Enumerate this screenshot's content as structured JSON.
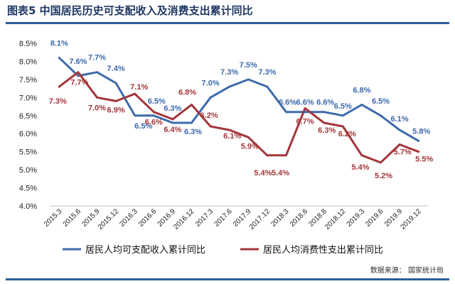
{
  "chart_data": {
    "type": "line",
    "title": "图表5  中国居民历史可支配收入及消费支出累计同比",
    "x": [
      "2015.3",
      "2015.6",
      "2015.9",
      "2015.12",
      "2016.3",
      "2016.6",
      "2016.9",
      "2016.12",
      "2017.3",
      "2017.6",
      "2017.9",
      "2017.12",
      "2018.3",
      "2018.6",
      "2018.8",
      "2018.12",
      "2019.3",
      "2019.6",
      "2019.9",
      "2019.12"
    ],
    "series": [
      {
        "name": "居民人均可支配收入累计同比",
        "color": "#3e6aab",
        "values": [
          8.1,
          7.6,
          7.7,
          7.4,
          6.5,
          6.5,
          6.3,
          6.3,
          7.0,
          7.3,
          7.5,
          7.3,
          6.6,
          6.6,
          6.6,
          6.5,
          6.8,
          6.5,
          6.1,
          5.8
        ],
        "labels": [
          "8.1%",
          "7.6%",
          "7.7%",
          "7.4%",
          "6.5%",
          "6.5%",
          "6.3%",
          "6.3%",
          "7.0%",
          "7.3%",
          "7.5%",
          "7.3%",
          "6.6%",
          "6.6%",
          "6.6%",
          "6.5%",
          "6.8%",
          "6.5%",
          "6.1%",
          "5.8%"
        ]
      },
      {
        "name": "居民人均消费性支出累计同比",
        "color": "#a3363a",
        "values": [
          7.3,
          7.7,
          7.0,
          6.9,
          7.1,
          6.6,
          6.4,
          6.8,
          6.2,
          6.1,
          5.9,
          5.4,
          5.4,
          6.7,
          6.3,
          6.2,
          5.4,
          5.2,
          5.7,
          5.5
        ],
        "labels": [
          "7.3%",
          "7.7%",
          "7.0%",
          "6.9%",
          "7.1%",
          "6.6%",
          "6.4%",
          "6.8%",
          "6.2%",
          "6.1%",
          "5.9%",
          "5.4%",
          "5.4%",
          "6.7%",
          "6.3%",
          "6.2%",
          "5.4%",
          "5.2%",
          "5.7%",
          "5.5%"
        ]
      }
    ],
    "ylim": [
      4.0,
      8.5
    ],
    "yticks": [
      4.0,
      4.5,
      5.0,
      5.5,
      6.0,
      6.5,
      7.0,
      7.5,
      8.0,
      8.5
    ],
    "ytick_labels": [
      "4.0%",
      "4.5%",
      "5.0%",
      "5.5%",
      "6.0%",
      "6.5%",
      "7.0%",
      "7.5%",
      "8.0%",
      "8.5%"
    ],
    "grid": false,
    "legend_position": "bottom"
  },
  "source": "数据来源： 国家统计局"
}
